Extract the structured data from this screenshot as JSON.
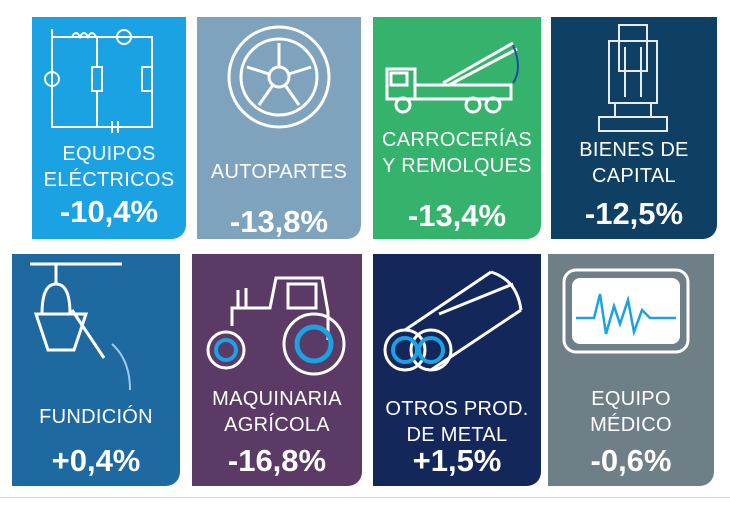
{
  "tiles": [
    {
      "label_lines": [
        "EQUIPOS",
        "ELÉCTRICOS"
      ],
      "value": "-10,4%",
      "icon": "circuit-icon",
      "color": "#1aa2e3"
    },
    {
      "label_lines": [
        "AUTOPARTES"
      ],
      "value": "-13,8%",
      "icon": "tire-icon",
      "color": "#7fa3bd"
    },
    {
      "label_lines": [
        "CARROCERÍAS",
        "Y REMOLQUES"
      ],
      "value": "-13,4%",
      "icon": "tow-truck-icon",
      "color": "#35b36c"
    },
    {
      "label_lines": [
        "BIENES DE",
        "CAPITAL"
      ],
      "value": "-12,5%",
      "icon": "industrial-press-icon",
      "color": "#0f3f62"
    },
    {
      "label_lines": [
        "FUNDICIÓN"
      ],
      "value": "+0,4%",
      "icon": "foundry-ladle-icon",
      "color": "#1e6aa0"
    },
    {
      "label_lines": [
        "MAQUINARIA",
        "AGRÍCOLA"
      ],
      "value": "-16,8%",
      "icon": "tractor-icon",
      "color": "#5c3a66"
    },
    {
      "label_lines": [
        "OTROS PROD.",
        "DE METAL"
      ],
      "value": "+1,5%",
      "icon": "metal-pipes-icon",
      "color": "#13275a"
    },
    {
      "label_lines": [
        "EQUIPO",
        "MÉDICO"
      ],
      "value": "-0,6%",
      "icon": "heart-monitor-icon",
      "color": "#6f7f87"
    }
  ]
}
